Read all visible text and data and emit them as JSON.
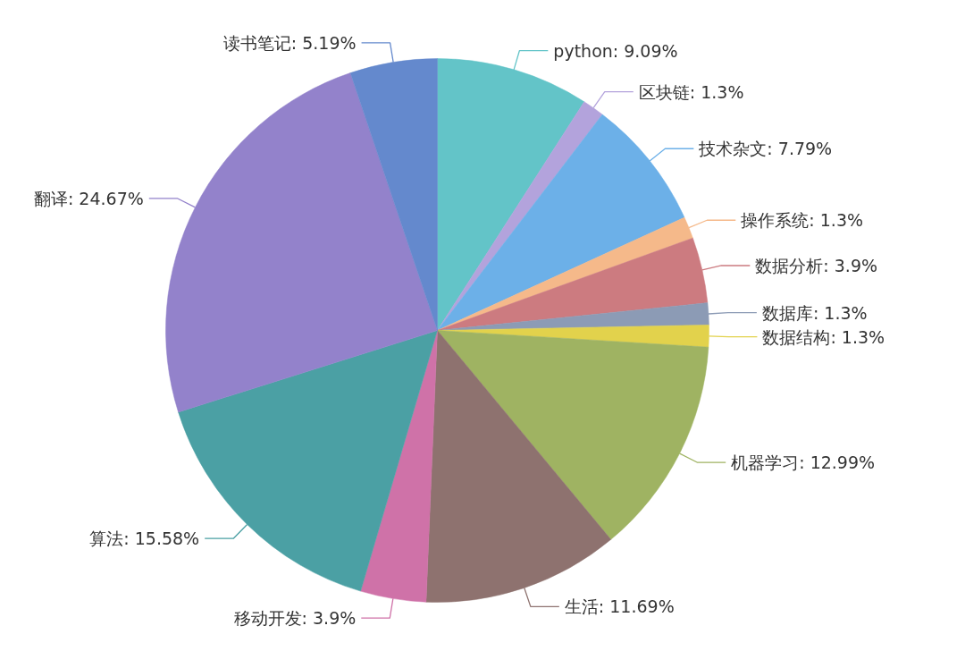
{
  "chart_data": {
    "type": "pie",
    "categories": [
      "python",
      "区块链",
      "技术杂文",
      "操作系统",
      "数据分析",
      "数据库",
      "数据结构",
      "机器学习",
      "生活",
      "移动开发",
      "算法",
      "翻译",
      "读书笔记"
    ],
    "values": [
      9.09,
      1.3,
      7.79,
      1.3,
      3.9,
      1.3,
      1.3,
      12.99,
      11.69,
      3.9,
      15.58,
      24.67,
      5.19
    ],
    "value_labels": [
      "9.09%",
      "1.3%",
      "7.79%",
      "1.3%",
      "3.9%",
      "1.3%",
      "1.3%",
      "12.99%",
      "11.69%",
      "3.9%",
      "15.58%",
      "24.67%",
      "5.19%"
    ],
    "colors": [
      "#63c4c8",
      "#b3a3dc",
      "#6cb0e8",
      "#f5b98a",
      "#cc7b80",
      "#8c9bb5",
      "#e2d24c",
      "#9fb362",
      "#8e726f",
      "#cf72a8",
      "#4ba0a4",
      "#9382cb",
      "#6489cd"
    ]
  }
}
